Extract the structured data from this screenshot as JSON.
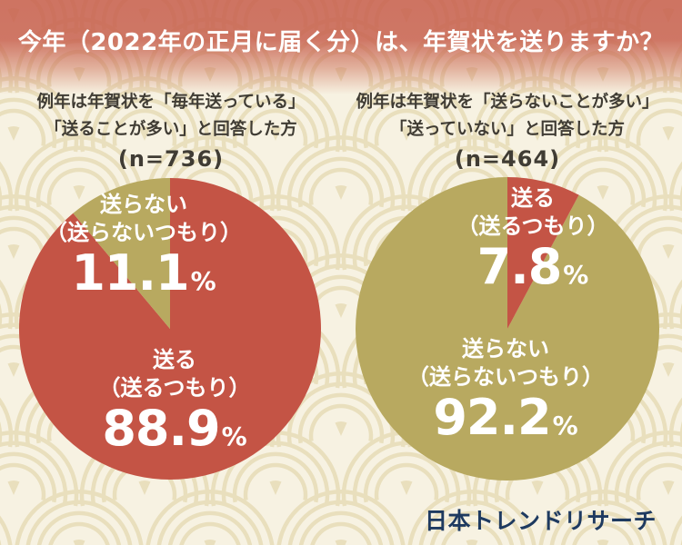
{
  "header": {
    "title": "今年（2022年の正月に届く分）は、年賀状を送りますか？"
  },
  "charts": [
    {
      "subtitle_line1": "例年は年賀状を「毎年送っている」",
      "subtitle_line2": "「送ることが多い」と回答した方",
      "n_label": "(n=736)",
      "minor_label": "送らない",
      "minor_label_sub": "（送らないつもり）",
      "minor_value": "11.1",
      "major_label": "送る",
      "major_label_sub": "（送るつもり）",
      "major_value": "88.9",
      "percent_sign": "%"
    },
    {
      "subtitle_line1": "例年は年賀状を「送らないことが多い」",
      "subtitle_line2": "「送っていない」と回答した方",
      "n_label": "(n=464)",
      "minor_label": "送る",
      "minor_label_sub": "（送るつもり）",
      "minor_value": "7.8",
      "major_label": "送らない",
      "major_label_sub": "（送らないつもり）",
      "major_value": "92.2",
      "percent_sign": "%"
    }
  ],
  "footer": {
    "source": "日本トレンドリサーチ"
  },
  "colors": {
    "send_red": "#c45445",
    "not_send_olive": "#b8a960",
    "banner_red": "#c75f4d",
    "background": "#f7f2e2",
    "pattern_arc": "#e9dfbd",
    "subtitle_text": "#403c34",
    "logo_navy": "#1e3a60",
    "label_white": "#ffffff"
  },
  "chart_data": [
    {
      "type": "pie",
      "title": "例年は年賀状を「毎年送っている」「送ることが多い」と回答した方",
      "n": 736,
      "slices": [
        {
          "label": "送る（送るつもり）",
          "value": 88.9,
          "color": "#c45445"
        },
        {
          "label": "送らない（送らないつもり）",
          "value": 11.1,
          "color": "#b8a960"
        }
      ],
      "minor_sweep": "ccw",
      "start_angle_deg": 0,
      "legend_position": "inside"
    },
    {
      "type": "pie",
      "title": "例年は年賀状を「送らないことが多い」「送っていない」と回答した方",
      "n": 464,
      "slices": [
        {
          "label": "送る（送るつもり）",
          "value": 7.8,
          "color": "#c45445"
        },
        {
          "label": "送らない（送らないつもり）",
          "value": 92.2,
          "color": "#b8a960"
        }
      ],
      "minor_sweep": "cw",
      "start_angle_deg": 0,
      "legend_position": "inside"
    }
  ]
}
